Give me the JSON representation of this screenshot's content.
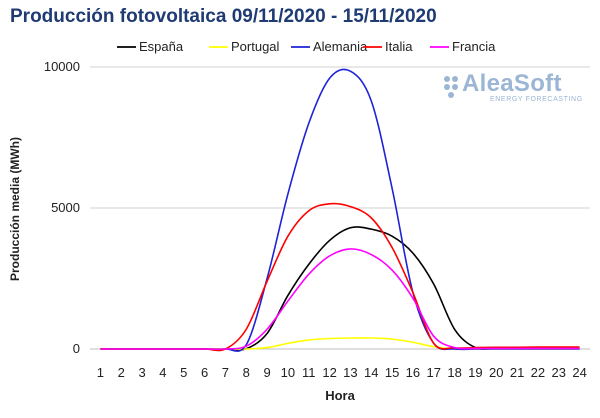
{
  "chart_data": {
    "type": "line",
    "title": "Producción fotovoltaica 09/11/2020 - 15/11/2020",
    "xlabel": "Hora",
    "ylabel": "Producción media (MWh)",
    "x": [
      1,
      2,
      3,
      4,
      5,
      6,
      7,
      8,
      9,
      10,
      11,
      12,
      13,
      14,
      15,
      16,
      17,
      18,
      19,
      20,
      21,
      22,
      23,
      24
    ],
    "ylim": [
      0,
      10000
    ],
    "yticks": [
      "0",
      "5000",
      "10000"
    ],
    "grid": "horizontal",
    "legend_position": "top",
    "series": [
      {
        "name": "España",
        "color": "#000000",
        "values": [
          0,
          0,
          0,
          0,
          0,
          0,
          0,
          10,
          550,
          1900,
          3000,
          3850,
          4300,
          4250,
          4000,
          3400,
          2300,
          700,
          50,
          20,
          20,
          20,
          20,
          20
        ]
      },
      {
        "name": "Portugal",
        "color": "#ffff00",
        "values": [
          0,
          0,
          0,
          0,
          0,
          0,
          0,
          0,
          50,
          200,
          320,
          370,
          390,
          390,
          350,
          240,
          80,
          0,
          0,
          0,
          0,
          0,
          0,
          0
        ]
      },
      {
        "name": "Alemania",
        "color": "#1f23d6",
        "values": [
          0,
          0,
          0,
          0,
          0,
          0,
          0,
          150,
          2500,
          5500,
          8000,
          9600,
          9850,
          8800,
          5700,
          2000,
          200,
          0,
          0,
          0,
          0,
          0,
          0,
          0
        ]
      },
      {
        "name": "Italia",
        "color": "#ff0000",
        "values": [
          0,
          0,
          0,
          0,
          0,
          0,
          0,
          700,
          2400,
          4000,
          4900,
          5150,
          5050,
          4650,
          3600,
          2000,
          200,
          40,
          50,
          60,
          60,
          70,
          70,
          70
        ]
      },
      {
        "name": "Francia",
        "color": "#ff00ff",
        "values": [
          0,
          0,
          0,
          0,
          0,
          0,
          0,
          100,
          700,
          1700,
          2650,
          3300,
          3550,
          3350,
          2800,
          1800,
          450,
          50,
          20,
          20,
          20,
          20,
          20,
          20
        ]
      }
    ]
  },
  "watermark": {
    "brand": "AleaSoft",
    "tagline": "ENERGY FORECASTING"
  }
}
